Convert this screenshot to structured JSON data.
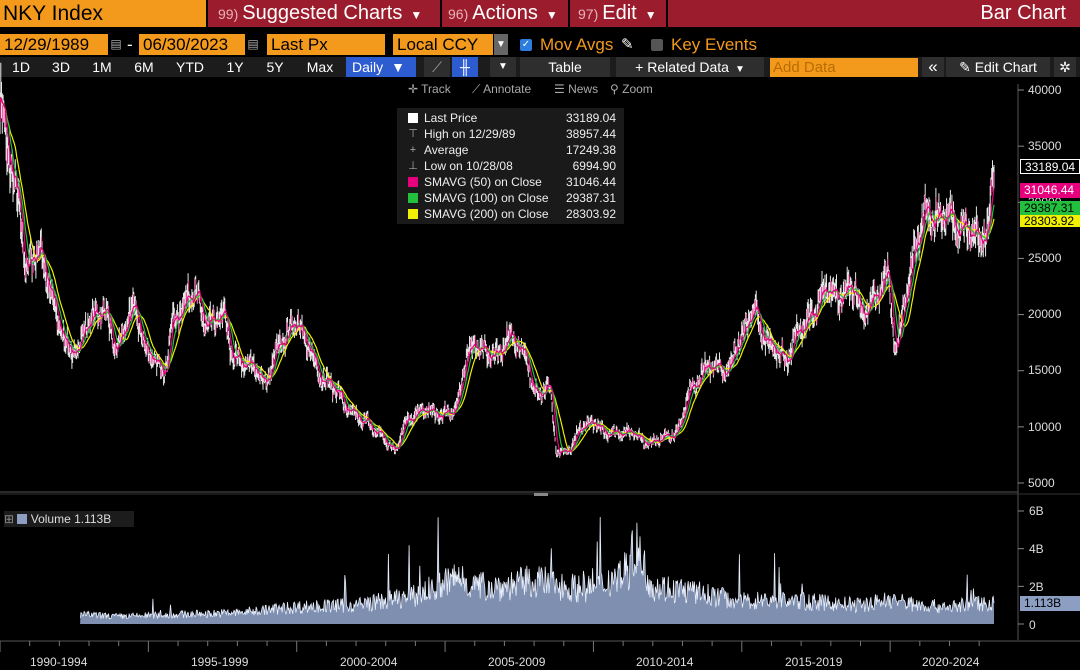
{
  "header": {
    "ticker": "NKY Index",
    "menus": [
      {
        "num": "99)",
        "label": "Suggested Charts"
      },
      {
        "num": "96)",
        "label": "Actions"
      },
      {
        "num": "97)",
        "label": "Edit"
      }
    ],
    "chart_kind": "Bar Chart"
  },
  "params": {
    "start_date": "12/29/1989",
    "end_date": "06/30/2023",
    "field": "Last Px",
    "currency": "Local CCY",
    "mov_avgs_label": "Mov Avgs",
    "key_events_label": "Key Events"
  },
  "toolbar": {
    "periods": [
      "1D",
      "3D",
      "1M",
      "6M",
      "YTD",
      "1Y",
      "5Y",
      "Max"
    ],
    "frequency": "Daily",
    "table_label": "Table",
    "related_data_label": "Related Data",
    "add_data_placeholder": "Add Data",
    "edit_chart_label": "Edit Chart"
  },
  "chart_tools": {
    "track": "Track",
    "annotate": "Annotate",
    "news": "News",
    "zoom": "Zoom"
  },
  "legend": {
    "last_price_label": "Last Price",
    "last_price": "33189.04",
    "high_label": "High on 12/29/89",
    "high": "38957.44",
    "average_label": "Average",
    "average": "17249.38",
    "low_label": "Low on 10/28/08",
    "low": "6994.90",
    "sma50_label": "SMAVG (50)  on Close",
    "sma50": "31046.44",
    "sma100_label": "SMAVG (100)  on Close",
    "sma100": "29387.31",
    "sma200_label": "SMAVG (200)  on Close",
    "sma200": "28303.92"
  },
  "price_tags": {
    "last": "33189.04",
    "sma50": "31046.44",
    "sma100": "29387.31",
    "sma200": "28303.92",
    "volume": "1.113B"
  },
  "volume_legend": "Volume 1.113B",
  "colors": {
    "price": "#ffffff",
    "sma50": "#e6007e",
    "sma100": "#22c03c",
    "sma200": "#f0f000",
    "volume": "#8c9ec2",
    "bloomberg_orange": "#f39a1c",
    "menu_red": "#9b1c2c"
  },
  "chart_data": {
    "type": "line",
    "series_name": "NKY Index",
    "x_tick_labels": [
      "1990-1994",
      "1995-1999",
      "2000-2004",
      "2005-2009",
      "2010-2014",
      "2015-2019",
      "2020-2024"
    ],
    "y_tick_labels": [
      "40000",
      "35000",
      "30000",
      "25000",
      "20000",
      "15000",
      "10000",
      "5000"
    ],
    "ylim": [
      4000,
      41000
    ],
    "x": [
      1990.0,
      1990.3,
      1990.6,
      1990.9,
      1991.3,
      1991.6,
      1992.0,
      1992.4,
      1992.6,
      1993.0,
      1993.5,
      1993.9,
      1994.5,
      1995.0,
      1995.5,
      1995.9,
      1996.5,
      1997.0,
      1997.5,
      1997.9,
      1998.5,
      1998.9,
      1999.5,
      2000.0,
      2000.4,
      2000.8,
      2001.3,
      2001.7,
      2002.3,
      2002.7,
      2003.3,
      2003.7,
      2004.3,
      2004.9,
      2005.3,
      2005.8,
      2006.0,
      2006.4,
      2006.8,
      2007.2,
      2007.7,
      2008.0,
      2008.5,
      2008.8,
      2009.2,
      2009.6,
      2010.0,
      2010.4,
      2010.8,
      2011.3,
      2011.8,
      2012.3,
      2012.8,
      2013.3,
      2013.9,
      2014.5,
      2014.9,
      2015.4,
      2015.7,
      2016.1,
      2016.5,
      2016.9,
      2017.4,
      2017.9,
      2018.3,
      2018.8,
      2019.0,
      2019.5,
      2019.9,
      2020.2,
      2020.6,
      2020.9,
      2021.2,
      2021.6,
      2021.9,
      2022.3,
      2022.7,
      2023.0,
      2023.3,
      2023.5
    ],
    "y": [
      38900,
      34000,
      30000,
      24000,
      26000,
      23000,
      19000,
      16500,
      17000,
      19500,
      20500,
      17000,
      20500,
      16500,
      15000,
      19800,
      22000,
      19000,
      20000,
      16000,
      15500,
      14000,
      17500,
      19500,
      17000,
      14500,
      13500,
      11500,
      10500,
      9500,
      8000,
      10500,
      11500,
      11000,
      11500,
      16500,
      17500,
      16500,
      16500,
      18000,
      16500,
      13000,
      13500,
      7500,
      8000,
      10000,
      10500,
      9500,
      9500,
      9500,
      8500,
      9000,
      9500,
      13500,
      15500,
      15000,
      17500,
      20500,
      18000,
      17000,
      16000,
      18500,
      20000,
      22500,
      21500,
      22500,
      20000,
      21500,
      23500,
      17000,
      22500,
      26500,
      29000,
      28500,
      29000,
      27500,
      27500,
      26500,
      28000,
      33200
    ],
    "sma50_series": {
      "name": "SMAVG (50)",
      "last": 31046.44
    },
    "sma100_series": {
      "name": "SMAVG (100)",
      "last": 29387.31
    },
    "sma200_series": {
      "name": "SMAVG (200)",
      "last": 28303.92
    },
    "volume": {
      "y_tick_labels": [
        "6B",
        "4B",
        "2B",
        "0"
      ],
      "ylim": [
        0,
        6200000000
      ],
      "x": [
        1992.7,
        1994.0,
        1996.0,
        1998.0,
        2000.0,
        2002.0,
        2004.0,
        2005.5,
        2006.0,
        2007.0,
        2008.0,
        2009.0,
        2010.0,
        2011.2,
        2011.4,
        2012.0,
        2013.0,
        2014.0,
        2015.0,
        2016.0,
        2017.0,
        2018.0,
        2019.0,
        2020.0,
        2021.0,
        2022.0,
        2023.0,
        2023.5
      ],
      "y": [
        500000000,
        400000000,
        500000000,
        600000000,
        900000000,
        1000000000,
        1500000000,
        2500000000,
        2000000000,
        2000000000,
        2300000000,
        2000000000,
        1800000000,
        3000000000,
        4000000000,
        2000000000,
        1800000000,
        1500000000,
        1200000000,
        1300000000,
        1200000000,
        1100000000,
        1000000000,
        1300000000,
        1000000000,
        900000000,
        1100000000,
        1113000000
      ]
    }
  }
}
